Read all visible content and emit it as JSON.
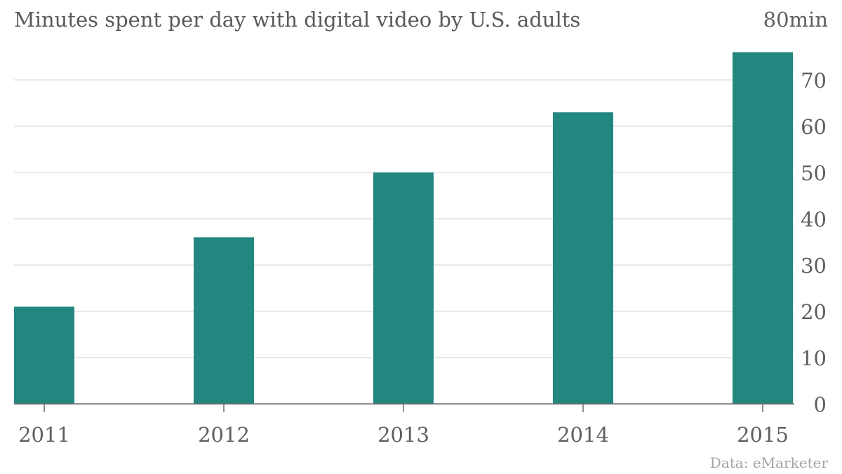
{
  "chart_data": {
    "type": "bar",
    "title": "Minutes spent per day with digital video by U.S. adults",
    "categories": [
      "2011",
      "2012",
      "2013",
      "2014",
      "2015"
    ],
    "values": [
      21,
      36,
      50,
      63,
      76
    ],
    "unit_label": "80min",
    "ylim": [
      0,
      80
    ],
    "yticks": [
      "0",
      "10",
      "20",
      "30",
      "40",
      "50",
      "60",
      "70"
    ],
    "y_axis_side": "right",
    "grid": true,
    "bar_color": "#22877f",
    "source": "Data: eMarketer"
  }
}
